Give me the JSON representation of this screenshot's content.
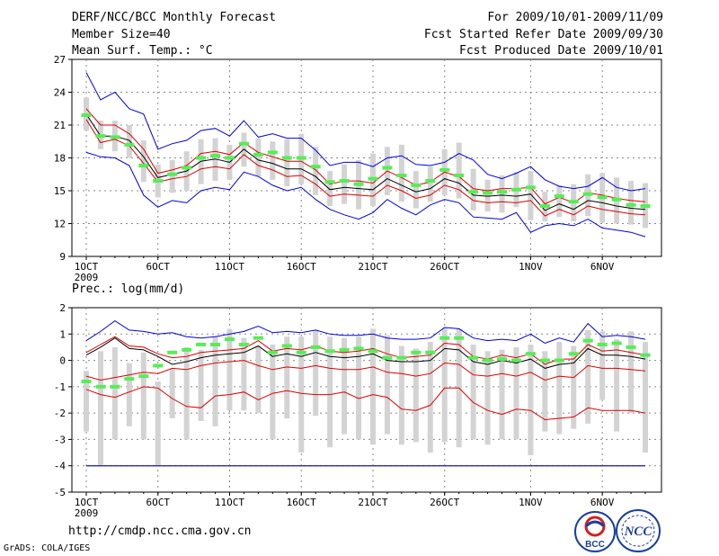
{
  "header": {
    "title": "DERF/NCC/BCC Monthly Forecast",
    "member": "Member Size=40",
    "variable": "Mean Surf. Temp.: °C",
    "period": "For 2009/10/01-2009/11/09",
    "refer": "Fcst Started Refer Date 2009/09/30",
    "produced": "Fcst Produced Date 2009/10/01"
  },
  "footer": {
    "url": "http://cmdp.ncc.cma.gov.cn",
    "credit": "GrADS: COLA/IGES",
    "logo_left": "BCC",
    "logo_right": "NCC"
  },
  "colors": {
    "ensemble_box": "#d3d3d3",
    "member_mean": "#55ee55",
    "mean": "#000000",
    "spread": "#dd0000",
    "envelope": "#0000dd",
    "grid": "#888888"
  },
  "chart_data": [
    {
      "type": "line",
      "title": "Mean Surf. Temp.: °C",
      "xlabel": "",
      "ylabel": "°C",
      "ylim": [
        9,
        27
      ],
      "yticks": [
        9,
        12,
        15,
        18,
        21,
        24,
        27
      ],
      "x": [
        1,
        2,
        3,
        4,
        5,
        6,
        7,
        8,
        9,
        10,
        11,
        12,
        13,
        14,
        15,
        16,
        17,
        18,
        19,
        20,
        21,
        22,
        23,
        24,
        25,
        26,
        27,
        28,
        29,
        30,
        31,
        32,
        33,
        34,
        35,
        36,
        37,
        38,
        39,
        40
      ],
      "xticks": [
        {
          "day": 1,
          "label": "1OCT",
          "sub": "2009"
        },
        {
          "day": 6,
          "label": "6OCT"
        },
        {
          "day": 11,
          "label": "11OCT"
        },
        {
          "day": 16,
          "label": "16OCT"
        },
        {
          "day": 21,
          "label": "21OCT"
        },
        {
          "day": 26,
          "label": "26OCT"
        },
        {
          "day": 32,
          "label": "1NOV"
        },
        {
          "day": 37,
          "label": "6NOV"
        }
      ],
      "series": [
        {
          "name": "max",
          "color": "blue",
          "values": [
            25.8,
            23.3,
            24.0,
            22.5,
            22.0,
            18.8,
            19.3,
            19.6,
            20.5,
            20.7,
            20.0,
            21.4,
            19.9,
            20.2,
            19.8,
            19.8,
            18.7,
            17.3,
            17.6,
            17.6,
            17.2,
            18.0,
            18.2,
            17.4,
            17.3,
            17.6,
            18.4,
            17.8,
            16.5,
            16.1,
            16.6,
            17.2,
            16.0,
            15.4,
            15.2,
            15.4,
            16.2,
            15.3,
            15.0,
            15.2
          ]
        },
        {
          "name": "upper",
          "color": "red",
          "values": [
            22.5,
            21.0,
            21.0,
            20.2,
            18.8,
            16.6,
            16.9,
            17.3,
            18.4,
            18.6,
            18.3,
            19.4,
            18.5,
            18.1,
            17.7,
            17.7,
            16.9,
            15.6,
            15.9,
            15.9,
            15.7,
            16.8,
            16.2,
            15.5,
            15.8,
            16.7,
            16.3,
            15.2,
            15.0,
            15.2,
            15.2,
            15.3,
            13.8,
            14.4,
            13.9,
            14.8,
            14.6,
            14.3,
            14.1,
            14.0
          ]
        },
        {
          "name": "mean",
          "color": "black",
          "values": [
            22.0,
            20.0,
            20.0,
            19.6,
            18.1,
            16.2,
            16.5,
            16.8,
            17.7,
            17.9,
            17.6,
            18.8,
            17.8,
            17.5,
            17.0,
            17.0,
            16.3,
            15.1,
            15.3,
            15.2,
            15.1,
            16.1,
            15.5,
            14.9,
            15.2,
            16.1,
            15.7,
            14.6,
            14.5,
            14.6,
            14.5,
            14.7,
            13.2,
            13.8,
            13.3,
            14.1,
            13.9,
            13.6,
            13.4,
            13.3
          ]
        },
        {
          "name": "lower",
          "color": "red",
          "values": [
            21.5,
            19.4,
            19.7,
            19.1,
            17.5,
            15.8,
            16.1,
            16.3,
            17.0,
            17.2,
            17.0,
            18.3,
            17.3,
            16.9,
            16.3,
            16.4,
            15.6,
            14.5,
            14.7,
            14.6,
            14.5,
            15.5,
            15.0,
            14.3,
            14.6,
            15.5,
            15.1,
            14.1,
            13.9,
            14.0,
            13.9,
            14.1,
            12.7,
            13.3,
            12.8,
            13.6,
            13.3,
            13.1,
            12.9,
            12.8
          ]
        },
        {
          "name": "min",
          "color": "blue",
          "values": [
            18.5,
            18.1,
            18.0,
            17.3,
            14.6,
            13.5,
            14.1,
            13.9,
            15.0,
            15.3,
            15.1,
            16.7,
            16.3,
            15.5,
            15.0,
            15.3,
            14.2,
            13.3,
            12.8,
            12.4,
            13.0,
            14.2,
            13.4,
            12.8,
            13.7,
            14.2,
            13.9,
            12.6,
            12.5,
            12.4,
            13.0,
            11.2,
            11.8,
            12.0,
            11.8,
            12.4,
            11.6,
            11.4,
            11.2,
            10.8
          ]
        }
      ],
      "boxes": {
        "low": [
          20.5,
          18.8,
          18.6,
          18.0,
          15.8,
          14.4,
          14.8,
          15.0,
          15.6,
          15.9,
          16.0,
          17.2,
          16.3,
          16.0,
          15.4,
          15.6,
          14.6,
          13.6,
          13.8,
          13.3,
          13.6,
          14.6,
          14.0,
          13.4,
          14.0,
          14.6,
          14.3,
          13.2,
          13.1,
          13.0,
          13.5,
          12.3,
          12.2,
          12.6,
          12.2,
          12.7,
          12.1,
          12.0,
          11.9,
          11.6
        ],
        "high": [
          23.5,
          21.4,
          21.4,
          21.0,
          19.6,
          17.4,
          17.8,
          18.6,
          19.7,
          19.8,
          19.2,
          20.3,
          19.8,
          19.5,
          19.7,
          20.2,
          19.0,
          16.8,
          17.4,
          17.8,
          18.4,
          19.0,
          19.2,
          16.8,
          17.2,
          18.8,
          19.4,
          17.0,
          16.0,
          16.4,
          16.7,
          16.8,
          14.9,
          15.5,
          15.6,
          16.5,
          16.6,
          16.2,
          15.9,
          15.7
        ],
        "members_mean": [
          21.9,
          20.0,
          19.9,
          19.2,
          17.3,
          15.9,
          16.5,
          17.1,
          18.0,
          18.2,
          18.0,
          19.3,
          18.3,
          18.5,
          18.0,
          18.0,
          17.2,
          15.8,
          15.9,
          15.6,
          16.1,
          17.1,
          16.4,
          15.5,
          15.9,
          16.9,
          16.4,
          14.9,
          14.8,
          14.9,
          15.1,
          15.3,
          13.6,
          14.5,
          14.0,
          14.7,
          14.4,
          14.2,
          13.7,
          13.6
        ]
      }
    },
    {
      "type": "line",
      "title": "Prec.: log(mm/d)",
      "xlabel": "",
      "ylabel": "log(mm/d)",
      "ylim": [
        -5,
        2
      ],
      "yticks": [
        -5,
        -4,
        -3,
        -2,
        -1,
        0,
        1,
        2
      ],
      "x": [
        1,
        2,
        3,
        4,
        5,
        6,
        7,
        8,
        9,
        10,
        11,
        12,
        13,
        14,
        15,
        16,
        17,
        18,
        19,
        20,
        21,
        22,
        23,
        24,
        25,
        26,
        27,
        28,
        29,
        30,
        31,
        32,
        33,
        34,
        35,
        36,
        37,
        38,
        39,
        40
      ],
      "xticks": [
        {
          "day": 1,
          "label": "1OCT",
          "sub": "2009"
        },
        {
          "day": 6,
          "label": "6OCT"
        },
        {
          "day": 11,
          "label": "11OCT"
        },
        {
          "day": 16,
          "label": "16OCT"
        },
        {
          "day": 21,
          "label": "21OCT"
        },
        {
          "day": 26,
          "label": "26OCT"
        },
        {
          "day": 32,
          "label": "1NOV"
        },
        {
          "day": 37,
          "label": "6NOV"
        }
      ],
      "series": [
        {
          "name": "max",
          "color": "blue",
          "values": [
            0.75,
            1.1,
            1.5,
            1.15,
            1.1,
            1.0,
            1.05,
            0.9,
            0.85,
            0.9,
            1.0,
            1.1,
            1.3,
            1.05,
            1.1,
            1.05,
            1.15,
            1.0,
            0.95,
            0.95,
            1.0,
            0.85,
            0.8,
            0.8,
            0.85,
            1.25,
            1.2,
            0.85,
            0.75,
            0.8,
            0.75,
            1.0,
            0.65,
            0.85,
            0.7,
            1.4,
            0.9,
            0.95,
            0.9,
            0.8
          ]
        },
        {
          "name": "upper",
          "color": "red",
          "values": [
            0.3,
            0.6,
            0.9,
            0.55,
            0.5,
            0.25,
            0.1,
            0.15,
            0.3,
            0.35,
            0.4,
            0.45,
            0.75,
            0.35,
            0.45,
            0.4,
            0.55,
            0.35,
            0.3,
            0.35,
            0.45,
            0.25,
            0.1,
            0.15,
            0.2,
            0.65,
            0.6,
            0.15,
            0.05,
            0.2,
            0.1,
            0.25,
            -0.15,
            0.05,
            0.05,
            0.6,
            0.35,
            0.4,
            0.3,
            0.2
          ]
        },
        {
          "name": "mean",
          "color": "black",
          "values": [
            0.2,
            0.5,
            0.85,
            0.45,
            0.4,
            0.15,
            -0.15,
            -0.05,
            0.1,
            0.2,
            0.25,
            0.3,
            0.55,
            0.15,
            0.25,
            0.15,
            0.3,
            0.15,
            0.1,
            0.15,
            0.25,
            0.0,
            -0.05,
            -0.05,
            0.0,
            0.45,
            0.4,
            -0.05,
            -0.15,
            0.0,
            -0.1,
            0.05,
            -0.3,
            -0.15,
            -0.1,
            0.45,
            0.2,
            0.2,
            0.15,
            0.05
          ]
        },
        {
          "name": "lower",
          "color": "red",
          "values": [
            -0.6,
            -0.75,
            -0.65,
            -0.55,
            -0.45,
            -0.5,
            -0.3,
            -0.35,
            -0.2,
            -0.1,
            -0.05,
            0.0,
            -0.2,
            -0.35,
            -0.25,
            -0.3,
            -0.2,
            -0.3,
            -0.35,
            -0.35,
            -0.25,
            -0.45,
            -0.5,
            -0.6,
            -0.5,
            -0.1,
            -0.15,
            -0.55,
            -0.6,
            -0.5,
            -0.6,
            -0.45,
            -0.75,
            -0.6,
            -0.65,
            -0.2,
            -0.3,
            -0.3,
            -0.35,
            -0.4
          ]
        },
        {
          "name": "min",
          "color": "red",
          "values": [
            -1.1,
            -1.3,
            -1.4,
            -1.2,
            -1.0,
            -1.05,
            -1.45,
            -1.75,
            -1.8,
            -1.35,
            -1.3,
            -1.2,
            -1.5,
            -1.25,
            -1.15,
            -1.25,
            -1.3,
            -1.3,
            -1.2,
            -1.45,
            -1.3,
            -1.4,
            -1.85,
            -1.9,
            -1.7,
            -1.05,
            -1.05,
            -1.6,
            -1.9,
            -2.05,
            -1.85,
            -1.9,
            -2.25,
            -2.2,
            -2.15,
            -1.8,
            -1.9,
            -1.9,
            -1.9,
            -2.0
          ]
        }
      ],
      "floor": -4,
      "boxes": {
        "low": [
          -2.7,
          -4.0,
          -3.0,
          -2.5,
          -3.0,
          -4.0,
          -2.2,
          -3.0,
          -2.3,
          -2.5,
          -1.9,
          -1.9,
          -2.0,
          -3.0,
          -2.2,
          -3.5,
          -2.1,
          -3.3,
          -2.8,
          -3.0,
          -3.2,
          -2.8,
          -3.2,
          -3.1,
          -3.5,
          -3.1,
          -3.3,
          -3.0,
          -3.2,
          -3.0,
          -3.0,
          -3.6,
          -2.7,
          -2.8,
          -2.6,
          -2.4,
          -1.5,
          -2.7,
          -2.0,
          -3.5
        ],
        "high": [
          -0.4,
          0.35,
          0.5,
          -0.1,
          0.3,
          -0.8,
          -0.3,
          0.5,
          0.4,
          0.9,
          1.2,
          0.85,
          0.55,
          0.6,
          0.9,
          0.9,
          1.15,
          0.9,
          0.85,
          0.9,
          1.2,
          0.95,
          0.55,
          0.45,
          0.7,
          1.25,
          1.2,
          0.6,
          0.35,
          0.4,
          0.5,
          0.6,
          0.35,
          0.7,
          0.55,
          1.15,
          1.1,
          0.8,
          1.1,
          0.7
        ],
        "members_mean": [
          -0.8,
          -1.0,
          -1.0,
          -0.7,
          -0.6,
          -0.2,
          0.3,
          0.4,
          0.6,
          0.6,
          0.8,
          0.6,
          0.85,
          0.3,
          0.55,
          0.3,
          0.5,
          0.35,
          0.4,
          0.45,
          0.35,
          0.1,
          0.1,
          0.3,
          0.3,
          0.85,
          0.85,
          0.1,
          0.0,
          0.05,
          0.0,
          0.25,
          0.0,
          0.0,
          0.25,
          0.75,
          0.6,
          0.65,
          0.5,
          0.2
        ]
      }
    }
  ]
}
